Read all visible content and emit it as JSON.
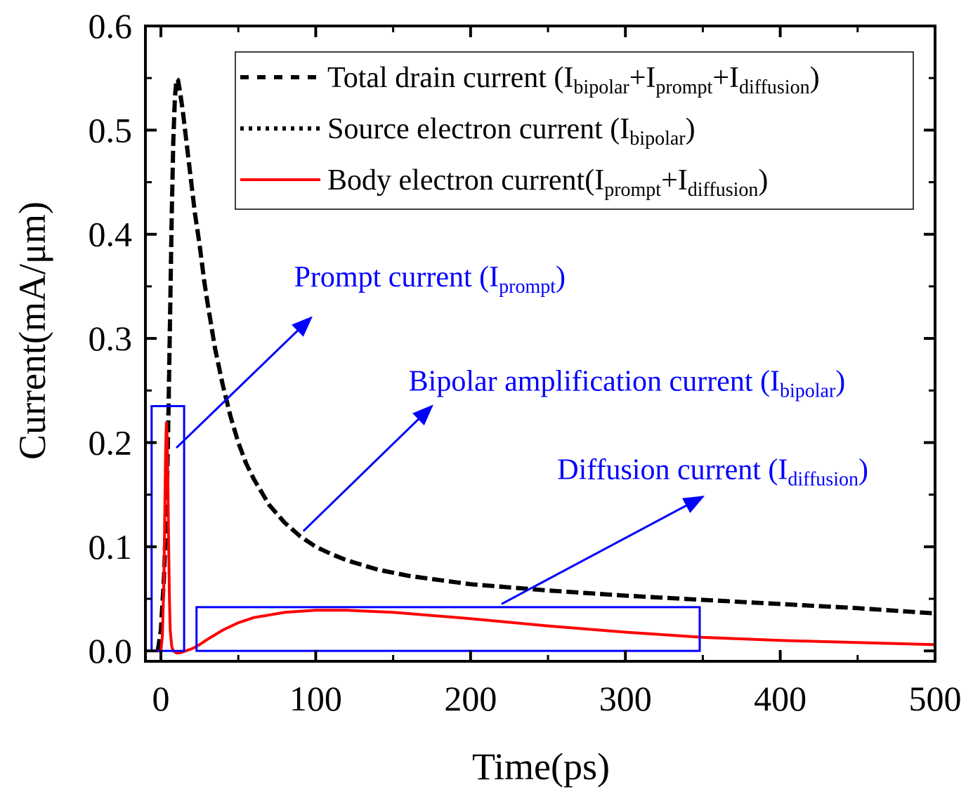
{
  "chart_data": {
    "type": "line",
    "xlabel": "Time(ps)",
    "ylabel": "Current(mA/μm)",
    "xlim": [
      -10,
      500
    ],
    "ylim": [
      -0.01,
      0.6
    ],
    "grid": false,
    "x_ticks": [
      0,
      100,
      200,
      300,
      400,
      500
    ],
    "x_tick_labels": [
      "0",
      "100",
      "200",
      "300",
      "400",
      "500"
    ],
    "y_ticks": [
      0.0,
      0.1,
      0.2,
      0.3,
      0.4,
      0.5,
      0.6
    ],
    "y_tick_labels": [
      "0.0",
      "0.1",
      "0.2",
      "0.3",
      "0.4",
      "0.5",
      "0.6"
    ],
    "legend": {
      "position": "top-right",
      "entries": [
        {
          "text": "Total drain current (",
          "parts": [
            [
              "I",
              ""
            ],
            [
              "bipolar",
              "sub"
            ],
            [
              "+I",
              ""
            ],
            [
              "prompt",
              "sub"
            ],
            [
              "+I",
              ""
            ],
            [
              "diffusion",
              "sub"
            ],
            [
              ")",
              ""
            ]
          ],
          "style": "dash",
          "color": "#000000"
        },
        {
          "text": "Source electron current (",
          "parts": [
            [
              "I",
              ""
            ],
            [
              "bipolar",
              "sub"
            ],
            [
              ")",
              ""
            ]
          ],
          "style": "dot",
          "color": "#000000"
        },
        {
          "text": "Body electron current(",
          "parts": [
            [
              "I",
              ""
            ],
            [
              "prompt",
              "sub"
            ],
            [
              "+I",
              ""
            ],
            [
              "diffusion",
              "sub"
            ],
            [
              ")",
              ""
            ]
          ],
          "style": "solid",
          "color": "#ff0000"
        }
      ]
    },
    "series": [
      {
        "name": "Total drain current (Ibipolar+Iprompt+Idiffusion)",
        "style": "dash",
        "color": "#000000",
        "x": [
          -2,
          0,
          2,
          4,
          5,
          6,
          7,
          8,
          9,
          10,
          11,
          12,
          14,
          16,
          18,
          20,
          22,
          25,
          28,
          30,
          35,
          40,
          45,
          50,
          55,
          60,
          70,
          80,
          90,
          100,
          110,
          120,
          140,
          160,
          180,
          200,
          250,
          300,
          350,
          400,
          450,
          500
        ],
        "y": [
          0.0,
          0.02,
          0.07,
          0.16,
          0.24,
          0.33,
          0.42,
          0.49,
          0.53,
          0.549,
          0.548,
          0.54,
          0.52,
          0.495,
          0.47,
          0.445,
          0.42,
          0.39,
          0.355,
          0.335,
          0.29,
          0.255,
          0.225,
          0.2,
          0.18,
          0.165,
          0.14,
          0.123,
          0.11,
          0.1,
          0.093,
          0.087,
          0.078,
          0.072,
          0.068,
          0.064,
          0.058,
          0.053,
          0.049,
          0.045,
          0.041,
          0.036
        ]
      },
      {
        "name": "Source electron current (Ibipolar)",
        "style": "dot",
        "color": "#000000",
        "x": [
          -2,
          0,
          2,
          4,
          5,
          6,
          7,
          8,
          9,
          10,
          11,
          12,
          14,
          16,
          18,
          20,
          22,
          25,
          28,
          30,
          35,
          40,
          45,
          50,
          55,
          60,
          70,
          80,
          90,
          100,
          110,
          120,
          140,
          160,
          180,
          200,
          250,
          300,
          350,
          400,
          450,
          500
        ],
        "y": [
          0.0,
          0.02,
          0.07,
          0.16,
          0.24,
          0.33,
          0.42,
          0.49,
          0.53,
          0.549,
          0.548,
          0.54,
          0.52,
          0.495,
          0.47,
          0.445,
          0.42,
          0.39,
          0.355,
          0.335,
          0.29,
          0.255,
          0.225,
          0.2,
          0.18,
          0.165,
          0.14,
          0.123,
          0.11,
          0.1,
          0.093,
          0.087,
          0.078,
          0.072,
          0.068,
          0.064,
          0.058,
          0.053,
          0.049,
          0.045,
          0.041,
          0.036
        ]
      },
      {
        "name": "Body electron current(Iprompt+Idiffusion)",
        "style": "solid",
        "color": "#ff0000",
        "x": [
          -3,
          0,
          1,
          2,
          2.5,
          3,
          3.5,
          4,
          4.5,
          5,
          5.5,
          6,
          7,
          8,
          10,
          12,
          14,
          16,
          20,
          25,
          30,
          40,
          50,
          60,
          80,
          100,
          120,
          150,
          200,
          250,
          300,
          350,
          400,
          450,
          500
        ],
        "y": [
          0.0,
          0.0,
          0.015,
          0.07,
          0.13,
          0.19,
          0.22,
          0.205,
          0.16,
          0.1,
          0.05,
          0.02,
          0.004,
          0.0,
          -0.002,
          -0.002,
          -0.001,
          0.0,
          0.002,
          0.006,
          0.011,
          0.02,
          0.027,
          0.032,
          0.037,
          0.039,
          0.039,
          0.037,
          0.031,
          0.024,
          0.018,
          0.013,
          0.01,
          0.008,
          0.006
        ]
      }
    ],
    "annotations": [
      {
        "text": "Prompt current (",
        "parts": [
          [
            "I",
            ""
          ],
          [
            "prompt",
            "sub"
          ],
          [
            ")",
            ""
          ]
        ],
        "color": "#0000ff",
        "box": {
          "x": [
            -6,
            15
          ],
          "y": [
            0.0,
            0.235
          ]
        },
        "arrow": {
          "from": [
            10,
            0.195
          ],
          "to": [
            97,
            0.32
          ]
        },
        "label_at": [
          86,
          0.35
        ]
      },
      {
        "text": "Bipolar amplification current (",
        "parts": [
          [
            "I",
            ""
          ],
          [
            "bipolar",
            "sub"
          ],
          [
            ")",
            ""
          ]
        ],
        "color": "#0000ff",
        "box": null,
        "arrow": {
          "from": [
            92,
            0.115
          ],
          "to": [
            175,
            0.235
          ]
        },
        "label_at": [
          160,
          0.25
        ]
      },
      {
        "text": "Diffusion current (",
        "parts": [
          [
            "I",
            ""
          ],
          [
            "diffusion",
            "sub"
          ],
          [
            ")",
            ""
          ]
        ],
        "color": "#0000ff",
        "box": {
          "x": [
            23,
            348
          ],
          "y": [
            0.0,
            0.042
          ]
        },
        "arrow": {
          "from": [
            220,
            0.045
          ],
          "to": [
            350,
            0.148
          ]
        },
        "label_at": [
          256,
          0.165
        ]
      }
    ]
  }
}
